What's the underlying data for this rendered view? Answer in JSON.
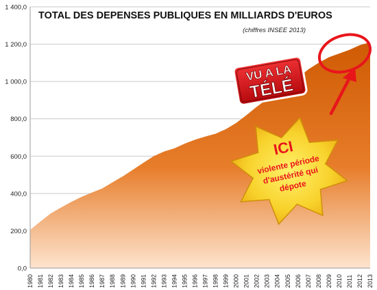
{
  "chart_data": {
    "type": "area",
    "title": "TOTAL DES DEPENSES PUBLIQUES EN MILLIARDS D'EUROS",
    "subtitle": "(chiffres INSEE 2013)",
    "x": [
      "1980",
      "1981",
      "1982",
      "1983",
      "1984",
      "1985",
      "1986",
      "1987",
      "1988",
      "1989",
      "1990",
      "1991",
      "1992",
      "1993",
      "1994",
      "1995",
      "1996",
      "1997",
      "1998",
      "1999",
      "2000",
      "2001",
      "2002",
      "2003",
      "2004",
      "2005",
      "2006",
      "2007",
      "2008",
      "2009",
      "2010",
      "2011",
      "2012",
      "2013"
    ],
    "values": [
      205,
      250,
      293,
      325,
      355,
      382,
      405,
      427,
      460,
      492,
      528,
      565,
      600,
      625,
      642,
      667,
      688,
      705,
      720,
      745,
      778,
      820,
      865,
      905,
      945,
      980,
      1020,
      1065,
      1100,
      1130,
      1150,
      1170,
      1195,
      1210
    ],
    "ylim": [
      0,
      1400
    ],
    "yticks": [
      "0,0",
      "200,0",
      "400,0",
      "600,0",
      "800,0",
      "1 000,0",
      "1 200,0",
      "1 400,0"
    ],
    "grid": true,
    "colors": {
      "area_top": "#d45f05",
      "area_bottom": "#fde4cf",
      "annotation": "#e8151b",
      "star": "#f5c51b"
    }
  },
  "annotations": {
    "badge_line1": "VU A LA",
    "badge_line2": "TÉLÉ",
    "star_title": "ICI",
    "star_line1": "violente période",
    "star_line2": "d'austérité qui",
    "star_line3": "dépote"
  }
}
